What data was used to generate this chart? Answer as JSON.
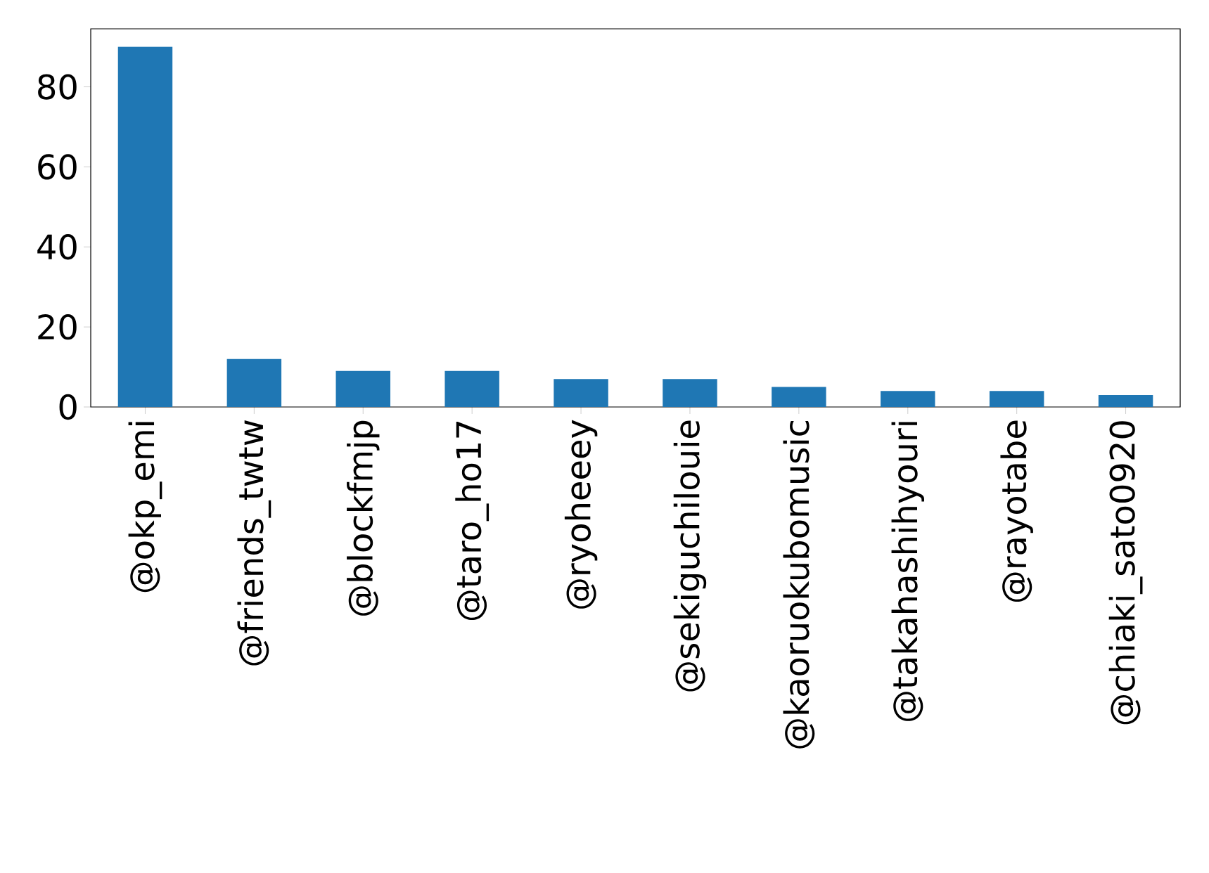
{
  "chart_data": {
    "type": "bar",
    "categories": [
      "@okp_emi",
      "@friends_twtw",
      "@blockfmjp",
      "@taro_ho17",
      "@ryoheeey",
      "@sekiguchilouie",
      "@kaoruokubomusic",
      "@takahashihyouri",
      "@rayotabe",
      "@chiaki_sato0920"
    ],
    "values": [
      90,
      12,
      9,
      9,
      7,
      7,
      5,
      4,
      4,
      3
    ],
    "color": "#1f77b4",
    "ylim": [
      0,
      94.5
    ],
    "yticks": [
      0,
      20,
      40,
      60,
      80
    ]
  }
}
